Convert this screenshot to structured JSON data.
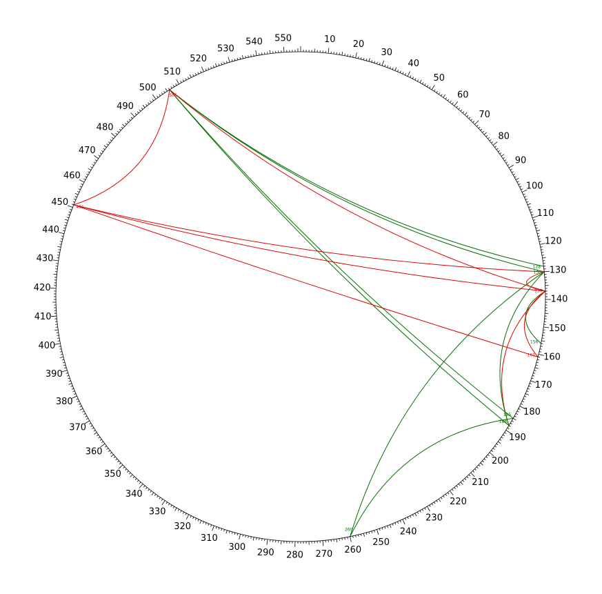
{
  "diagram": {
    "type": "circular-arc-plot",
    "total_positions": 556,
    "colors": {
      "ring": "#000000",
      "red": "#e00000",
      "green": "#007000"
    },
    "tick_labels": [
      "10",
      "20",
      "30",
      "40",
      "50",
      "60",
      "70",
      "80",
      "90",
      "100",
      "110",
      "120",
      "130",
      "140",
      "150",
      "160",
      "170",
      "180",
      "190",
      "200",
      "210",
      "220",
      "230",
      "240",
      "250",
      "260",
      "270",
      "280",
      "290",
      "300",
      "310",
      "320",
      "330",
      "340",
      "350",
      "360",
      "370",
      "380",
      "390",
      "400",
      "410",
      "420",
      "430",
      "440",
      "450",
      "460",
      "470",
      "480",
      "490",
      "500",
      "510",
      "520",
      "530",
      "540",
      "550"
    ],
    "node_labels": [
      {
        "text": "128",
        "pos": 128,
        "color": "green"
      },
      {
        "text": "130",
        "pos": 130,
        "color": "green"
      },
      {
        "text": "137",
        "pos": 137,
        "color": "red"
      },
      {
        "text": "156",
        "pos": 156,
        "color": "green"
      },
      {
        "text": "161",
        "pos": 161,
        "color": "red"
      },
      {
        "text": "185",
        "pos": 185,
        "color": "green"
      },
      {
        "text": "188",
        "pos": 188,
        "color": "green"
      },
      {
        "text": "260",
        "pos": 260,
        "color": "green"
      },
      {
        "text": "451",
        "pos": 451,
        "color": "red"
      },
      {
        "text": "506",
        "pos": 506,
        "color": "red"
      }
    ],
    "links": [
      {
        "from": 506,
        "to": 128,
        "color": "green"
      },
      {
        "from": 506,
        "to": 130,
        "color": "green"
      },
      {
        "from": 506,
        "to": 185,
        "color": "green"
      },
      {
        "from": 506,
        "to": 188,
        "color": "green"
      },
      {
        "from": 506,
        "to": 137,
        "color": "red"
      },
      {
        "from": 506,
        "to": 451,
        "color": "red"
      },
      {
        "from": 451,
        "to": 130,
        "color": "red"
      },
      {
        "from": 451,
        "to": 161,
        "color": "red"
      },
      {
        "from": 451,
        "to": 137,
        "color": "red"
      },
      {
        "from": 137,
        "to": 188,
        "color": "red"
      },
      {
        "from": 137,
        "to": 156,
        "color": "green"
      },
      {
        "from": 137,
        "to": 161,
        "color": "red"
      },
      {
        "from": 130,
        "to": 188,
        "color": "green"
      },
      {
        "from": 130,
        "to": 260,
        "color": "green"
      },
      {
        "from": 260,
        "to": 185,
        "color": "green"
      },
      {
        "from": 130,
        "to": 137,
        "color": "red"
      }
    ]
  }
}
